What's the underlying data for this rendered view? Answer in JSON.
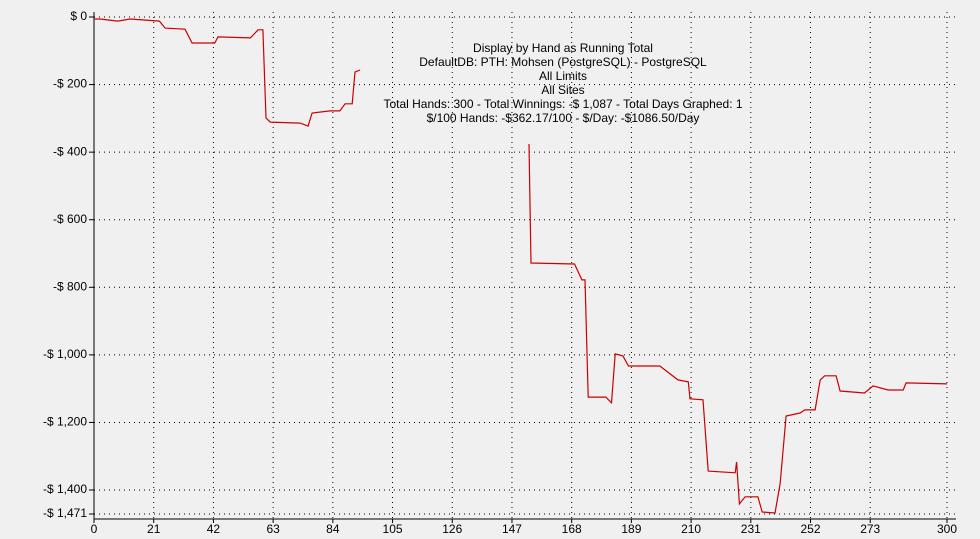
{
  "chart_data": {
    "type": "line",
    "title": "Display by Hand as Running Total",
    "subtitles": [
      "DefaultDB: PTH: Mohsen (PostgreSQL) - PostgreSQL",
      "All Limits",
      "All Sites",
      "Total Hands: 300 - Total Winnings: -$ 1,087 - Total Days Graphed: 1",
      "$/100 Hands: -$362.17/100 - $/Day: -$1086.50/Day"
    ],
    "color": "#cc0000",
    "grid": true,
    "x": [
      0,
      2.1,
      8.4,
      12.7,
      23,
      25,
      32,
      34.5,
      42.5,
      43.6,
      55,
      57.7,
      59.4,
      60.5,
      62,
      72.5,
      75.3,
      76.7,
      83,
      86.5,
      88.3,
      90.8,
      91.8,
      93.6,
      null,
      153,
      153.7,
      169,
      170,
      171.6,
      172.7,
      173.8,
      180,
      182,
      183.3,
      186,
      188,
      199,
      205.4,
      209,
      209.6,
      214.2,
      216,
      225.5,
      226,
      227,
      229,
      233.5,
      235,
      239.5,
      241.3,
      243.4,
      248.3,
      250,
      253.6,
      255.4,
      257,
      261,
      262.4,
      271,
      274,
      279.3,
      284.6,
      285.6,
      300
    ],
    "values": [
      -6,
      -6,
      -12,
      -6,
      -12,
      -33,
      -36,
      -77,
      -77,
      -59,
      -62,
      -38,
      -38,
      -299,
      -311,
      -314,
      -323,
      -284,
      -278,
      -278,
      -257,
      -257,
      -163,
      -157,
      null,
      -376,
      -728,
      -731,
      -749,
      -778,
      -778,
      -1125,
      -1125,
      -1142,
      -997,
      -1003,
      -1033,
      -1033,
      -1074,
      -1080,
      -1130,
      -1133,
      -1344,
      -1349,
      -1317,
      -1441,
      -1420,
      -1420,
      -1465,
      -1468,
      -1382,
      -1181,
      -1172,
      -1163,
      -1163,
      -1074,
      -1062,
      -1062,
      -1107,
      -1113,
      -1092,
      -1104,
      -1104,
      -1083,
      -1086
    ],
    "xlim": [
      0,
      300
    ],
    "xticks": [
      0,
      21,
      42,
      63,
      84,
      105,
      126,
      147,
      168,
      189,
      210,
      231,
      252,
      273,
      300
    ],
    "ylim": [
      -1471,
      0
    ],
    "yticks": [
      {
        "value": 0,
        "label": "$ 0"
      },
      {
        "value": -200,
        "label": "-$ 200"
      },
      {
        "value": -400,
        "label": "-$ 400"
      },
      {
        "value": -600,
        "label": "-$ 600"
      },
      {
        "value": -800,
        "label": "-$ 800"
      },
      {
        "value": -1000,
        "label": "-$ 1,000"
      },
      {
        "value": -1200,
        "label": "-$ 1,200"
      },
      {
        "value": -1400,
        "label": "-$ 1,400"
      },
      {
        "value": -1471,
        "label": "-$ 1,471"
      }
    ]
  }
}
